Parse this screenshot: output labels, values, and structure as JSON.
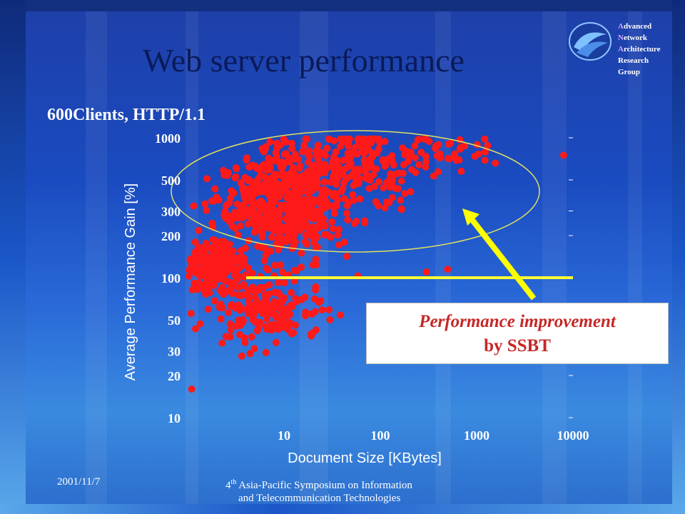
{
  "slide": {
    "title": "Web server performance",
    "org_lines": [
      {
        "cap": "A",
        "rest": "dvanced"
      },
      {
        "cap": "N",
        "rest": "etwork"
      },
      {
        "cap": "A",
        "rest": "rchitecture"
      },
      {
        "cap": "",
        "rest": "Research"
      },
      {
        "cap": "",
        "rest": "Group"
      }
    ],
    "footer_date": "2001/11/7",
    "footer_conf_num": "4",
    "footer_conf_sup": "th",
    "footer_conf_line1": " Asia-Pacific Symposium on Information",
    "footer_conf_line2": "and Telecommunication Technologies"
  },
  "callout": {
    "line1": "Performance improvement",
    "line2": "by SSBT"
  },
  "chart_data": {
    "type": "scatter",
    "title": "600Clients, HTTP/1.1",
    "xlabel": "Document Size [KBytes]",
    "ylabel": "Average Performance Gain [%]",
    "x_scale": "log",
    "y_scale": "log",
    "xlim": [
      1,
      10000
    ],
    "ylim": [
      10,
      1000
    ],
    "x_ticks": [
      10,
      100,
      1000,
      10000
    ],
    "y_ticks": [
      10,
      20,
      30,
      50,
      100,
      200,
      300,
      500,
      1000
    ],
    "reference_line_y": 100,
    "point_color": "#ff1a1a",
    "reference_line_color": "#ffff33",
    "highlight_ellipse_color": "#e0e060",
    "arrow_color": "#ffff00",
    "cluster_seed": 7,
    "clusters": [
      {
        "x_center": 1.8,
        "x_spread": 0.2,
        "y_center": 120,
        "y_spread": 0.11,
        "count": 260
      },
      {
        "x_center": 6,
        "x_spread": 0.4,
        "y_center": 60,
        "y_spread": 0.2,
        "count": 180
      },
      {
        "x_center": 10,
        "x_spread": 0.45,
        "y_center": 350,
        "y_spread": 0.28,
        "count": 520
      },
      {
        "x_center": 60,
        "x_spread": 0.45,
        "y_center": 600,
        "y_spread": 0.2,
        "count": 200
      },
      {
        "x_center": 400,
        "x_spread": 0.35,
        "y_center": 800,
        "y_spread": 0.1,
        "count": 40
      }
    ],
    "points": [
      {
        "x": 8000,
        "y": 750
      },
      {
        "x": 1.1,
        "y": 16
      },
      {
        "x": 1300,
        "y": 880
      },
      {
        "x": 30,
        "y": 50
      },
      {
        "x": 300,
        "y": 110
      },
      {
        "x": 500,
        "y": 115
      }
    ]
  }
}
